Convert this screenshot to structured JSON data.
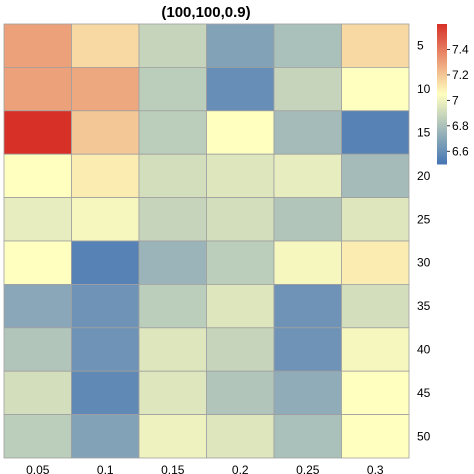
{
  "chart_data": {
    "type": "heatmap",
    "title": "(100,100,0.9)",
    "x_categories": [
      "0.05",
      "0.1",
      "0.15",
      "0.2",
      "0.25",
      "0.3"
    ],
    "y_categories": [
      "5",
      "10",
      "15",
      "20",
      "25",
      "30",
      "35",
      "40",
      "45",
      "50"
    ],
    "values": [
      [
        7.3,
        7.15,
        6.88,
        6.68,
        6.8,
        7.15
      ],
      [
        7.3,
        7.28,
        6.85,
        6.6,
        6.88,
        7.05
      ],
      [
        7.6,
        7.2,
        6.85,
        7.05,
        6.78,
        6.55
      ],
      [
        7.05,
        7.1,
        6.92,
        6.95,
        6.98,
        6.78
      ],
      [
        6.98,
        7.02,
        6.88,
        6.92,
        6.82,
        6.95
      ],
      [
        7.05,
        6.55,
        6.75,
        6.85,
        7.02,
        7.1
      ],
      [
        6.7,
        6.62,
        6.85,
        6.95,
        6.62,
        6.92
      ],
      [
        6.82,
        6.62,
        6.95,
        6.88,
        6.62,
        7.02
      ],
      [
        6.92,
        6.58,
        6.95,
        6.82,
        6.72,
        7.05
      ],
      [
        6.85,
        6.68,
        7.0,
        6.95,
        6.8,
        7.05
      ]
    ],
    "color_range": [
      6.5,
      7.6
    ],
    "colors": {
      "low": "#4575b4",
      "mid": "#ffffbf",
      "high": "#d73027"
    },
    "legend": {
      "placement": "right",
      "ticks": [
        "7.4",
        "7.2",
        "7",
        "6.8",
        "6.6"
      ],
      "tick_values": [
        7.4,
        7.2,
        7.0,
        6.8,
        6.6
      ]
    }
  }
}
